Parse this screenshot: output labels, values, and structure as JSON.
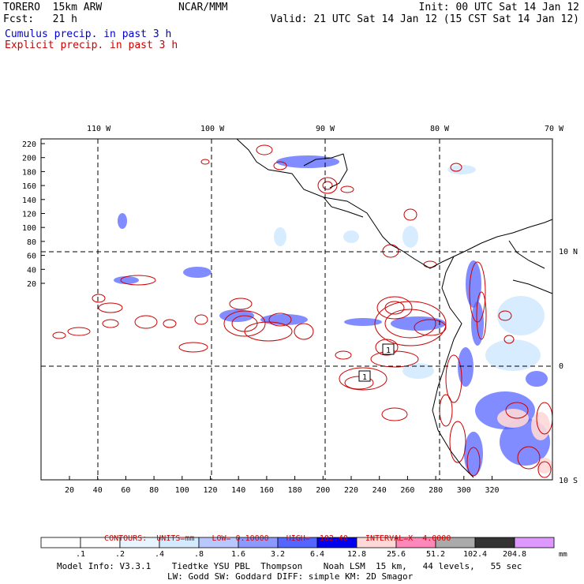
{
  "header": {
    "title_left": "TORERO  15km ARW",
    "org": "NCAR/MMM",
    "forecast": "Fcst:   21 h",
    "init": "Init: 00 UTC Sat 14 Jan 12",
    "valid": "Valid: 21 UTC Sat 14 Jan 12 (15 CST Sat 14 Jan 12)"
  },
  "legend": {
    "cumulus": "Cumulus precip. in past 3 h",
    "explicit": "Explicit precip. in past 3 h"
  },
  "colors": {
    "cumulus": "#0000cc",
    "explicit": "#cc0000",
    "map": "#000000",
    "grid": "#000000"
  },
  "map": {
    "lon_labels": [
      "110 W",
      "100 W",
      "90 W",
      "80 W",
      "70 W"
    ],
    "lat_labels": [
      "10 N",
      "0",
      "10 S"
    ],
    "y_ticks": [
      "220",
      "200",
      "180",
      "160",
      "140",
      "120",
      "100",
      "80",
      "60",
      "40",
      "20"
    ],
    "x_ticks": [
      "20",
      "40",
      "60",
      "80",
      "100",
      "120",
      "140",
      "160",
      "180",
      "200",
      "220",
      "240",
      "260",
      "280",
      "300",
      "320"
    ],
    "box_labels": [
      "1",
      "1"
    ]
  },
  "contours": {
    "units": "CONTOURS:  UNITS=mm",
    "low": "LOW= 0.10000",
    "high": "HIGH=  102.40",
    "interval": "INTERVAL=X  4.0000"
  },
  "colorbar": {
    "labels": [
      ".1",
      ".2",
      ".4",
      ".8",
      "1.6",
      "3.2",
      "6.4",
      "12.8",
      "25.6",
      "51.2",
      "102.4",
      "204.8"
    ],
    "unit": "mm",
    "colors": [
      "#ffffff",
      "#ffffff",
      "#e8f4ff",
      "#d4eaff",
      "#b8c8ff",
      "#8c99ff",
      "#5566ff",
      "#0000ee",
      "#ffd8d8",
      "#ff88bb",
      "#aaaaaa",
      "#333333",
      "#dd99ff"
    ]
  },
  "model_info": {
    "line1": "Model Info: V3.3.1    Tiedtke YSU PBL  Thompson    Noah LSM  15 km,   44 levels,   55 sec",
    "line2": "LW: Godd SW: Goddard DIFF: simple KM: 2D Smagor"
  }
}
